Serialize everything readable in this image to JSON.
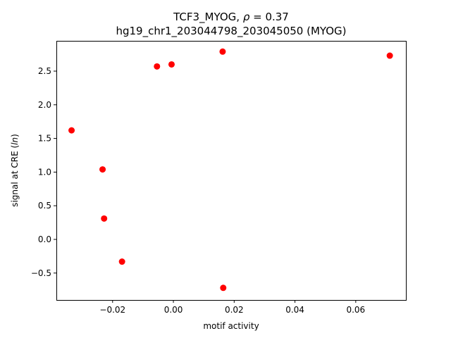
{
  "chart_data": {
    "type": "scatter",
    "title_line1": "TCF3_MYOG, ρ = 0.37",
    "title_line2": "hg19_chr1_203044798_203045050 (MYOG)",
    "xlabel": "motif activity",
    "ylabel": "signal at CRE (ln)",
    "xlim": [
      -0.0385,
      0.0765
    ],
    "ylim": [
      -0.9,
      2.95
    ],
    "xticks": [
      -0.02,
      0.0,
      0.02,
      0.04,
      0.06
    ],
    "xtick_labels": [
      "−0.02",
      "0.00",
      "0.02",
      "0.04",
      "0.06"
    ],
    "yticks": [
      -0.5,
      0.0,
      0.5,
      1.0,
      1.5,
      2.0,
      2.5
    ],
    "ytick_labels": [
      "−0.5",
      "0.0",
      "0.5",
      "1.0",
      "1.5",
      "2.0",
      "2.5"
    ],
    "grid": false,
    "marker_color": "#ff0000",
    "points": [
      {
        "x": -0.0335,
        "y": 1.62
      },
      {
        "x": -0.0233,
        "y": 1.04
      },
      {
        "x": -0.0228,
        "y": 0.31
      },
      {
        "x": -0.0169,
        "y": -0.33
      },
      {
        "x": -0.0054,
        "y": 2.57
      },
      {
        "x": -0.0006,
        "y": 2.6
      },
      {
        "x": 0.0162,
        "y": 2.79
      },
      {
        "x": 0.0164,
        "y": -0.72
      },
      {
        "x": 0.0712,
        "y": 2.73
      }
    ]
  }
}
